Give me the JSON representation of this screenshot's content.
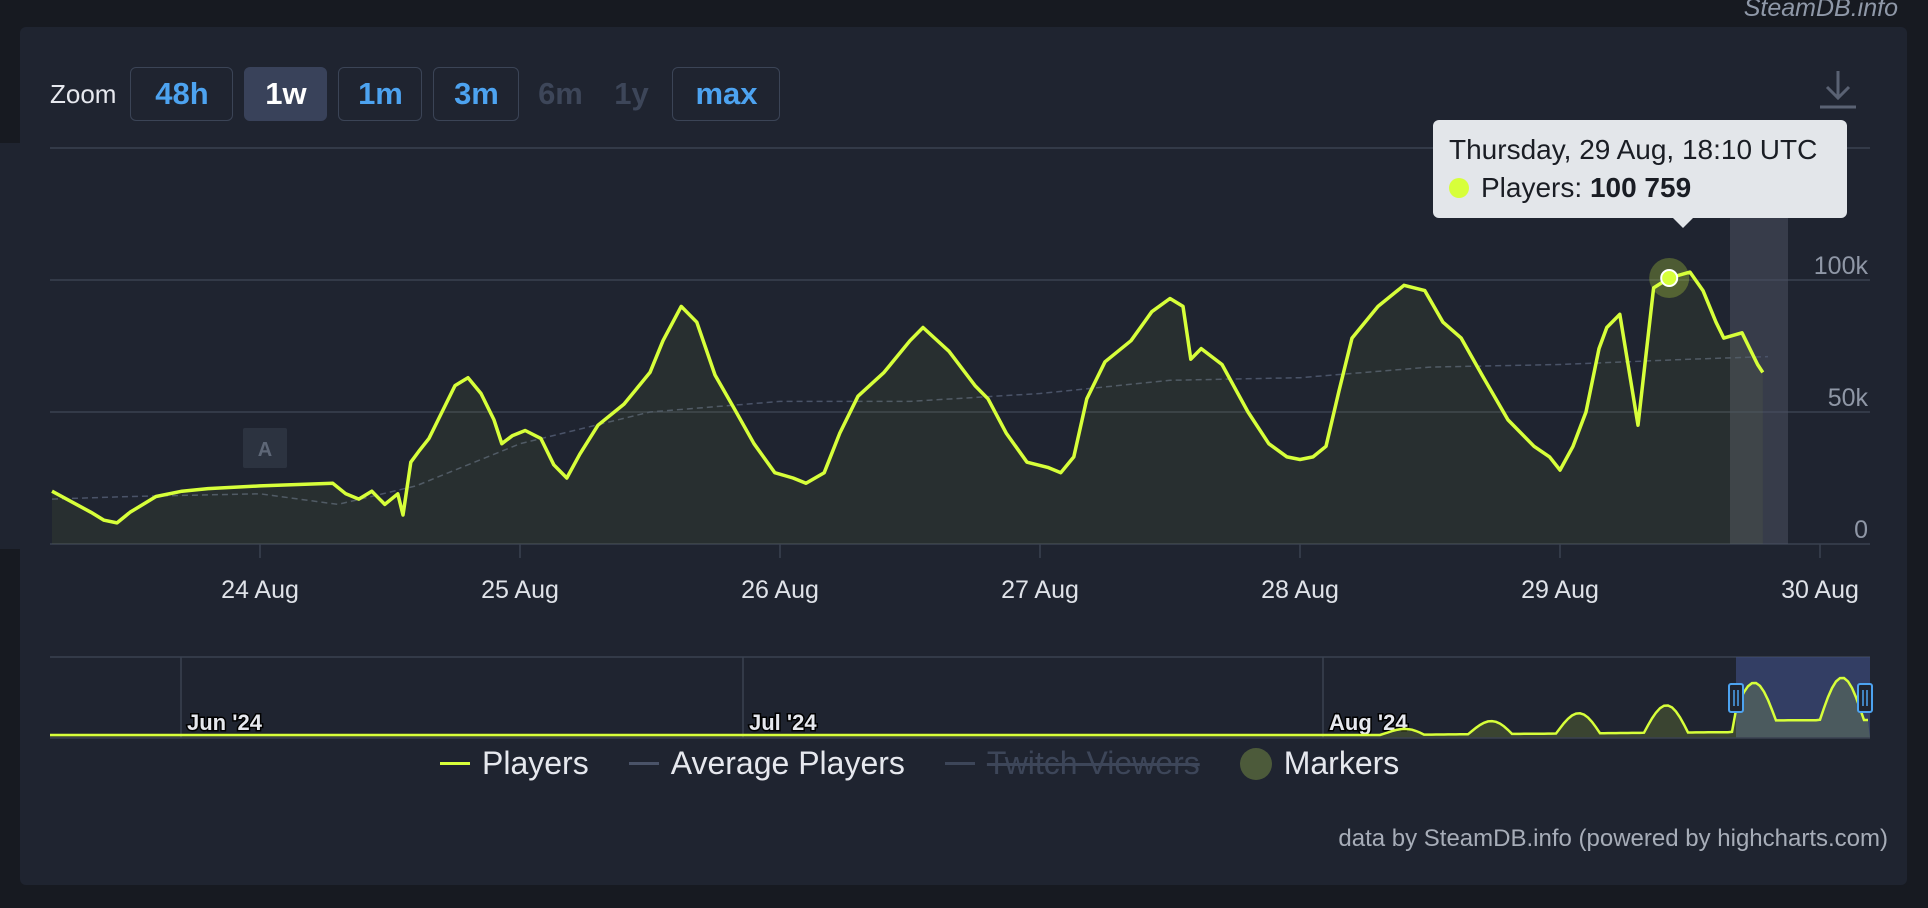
{
  "watermark": "SteamDB.info",
  "zoom": {
    "label": "Zoom",
    "buttons": [
      {
        "label": "48h",
        "state": "normal"
      },
      {
        "label": "1w",
        "state": "active"
      },
      {
        "label": "1m",
        "state": "normal"
      },
      {
        "label": "3m",
        "state": "normal"
      },
      {
        "label": "6m",
        "state": "disabled"
      },
      {
        "label": "1y",
        "state": "disabled"
      },
      {
        "label": "max",
        "state": "normal"
      }
    ]
  },
  "download_icon": "download-icon",
  "tooltip": {
    "title": "Thursday, 29 Aug, 18:10 UTC",
    "series_label": "Players: ",
    "value": "100 759"
  },
  "marker": {
    "label": "A"
  },
  "colors": {
    "players": "#d7ff3a",
    "average": "#4a5368",
    "twitch": "#3d4659",
    "marker": "#4c5a3a",
    "panel": "#1f2430"
  },
  "chart_data": {
    "type": "line",
    "x_ticks": [
      "24 Aug",
      "25 Aug",
      "26 Aug",
      "27 Aug",
      "28 Aug",
      "29 Aug",
      "30 Aug"
    ],
    "y_ticks": [
      "0",
      "50k",
      "100k"
    ],
    "ylim": [
      0,
      150000
    ],
    "series": [
      {
        "name": "Players",
        "points": [
          [
            -0.8,
            20000
          ],
          [
            -0.65,
            12000
          ],
          [
            -0.6,
            9000
          ],
          [
            -0.55,
            8000
          ],
          [
            -0.5,
            12000
          ],
          [
            -0.4,
            18000
          ],
          [
            -0.3,
            20000
          ],
          [
            -0.2,
            21000
          ],
          [
            0.0,
            22000
          ],
          [
            0.28,
            23000
          ],
          [
            0.33,
            19000
          ],
          [
            0.38,
            17000
          ],
          [
            0.43,
            20000
          ],
          [
            0.48,
            15000
          ],
          [
            0.53,
            19000
          ],
          [
            0.55,
            11000
          ],
          [
            0.58,
            31000
          ],
          [
            0.61,
            35000
          ],
          [
            0.65,
            40000
          ],
          [
            0.7,
            50000
          ],
          [
            0.75,
            60000
          ],
          [
            0.8,
            63000
          ],
          [
            0.85,
            57000
          ],
          [
            0.9,
            47000
          ],
          [
            0.93,
            38000
          ],
          [
            0.97,
            41000
          ],
          [
            1.02,
            43000
          ],
          [
            1.08,
            40000
          ],
          [
            1.13,
            30000
          ],
          [
            1.18,
            25000
          ],
          [
            1.23,
            34000
          ],
          [
            1.3,
            45000
          ],
          [
            1.4,
            53000
          ],
          [
            1.5,
            65000
          ],
          [
            1.55,
            77000
          ],
          [
            1.62,
            90000
          ],
          [
            1.68,
            84000
          ],
          [
            1.75,
            64000
          ],
          [
            1.82,
            52000
          ],
          [
            1.9,
            38000
          ],
          [
            1.98,
            27000
          ],
          [
            2.05,
            25000
          ],
          [
            2.1,
            23000
          ],
          [
            2.17,
            27000
          ],
          [
            2.23,
            42000
          ],
          [
            2.3,
            56000
          ],
          [
            2.4,
            65000
          ],
          [
            2.5,
            77000
          ],
          [
            2.55,
            82000
          ],
          [
            2.65,
            73000
          ],
          [
            2.75,
            60000
          ],
          [
            2.8,
            55000
          ],
          [
            2.87,
            42000
          ],
          [
            2.95,
            31000
          ],
          [
            3.03,
            29000
          ],
          [
            3.08,
            27000
          ],
          [
            3.13,
            33000
          ],
          [
            3.18,
            55000
          ],
          [
            3.25,
            69000
          ],
          [
            3.35,
            77000
          ],
          [
            3.43,
            88000
          ],
          [
            3.5,
            93000
          ],
          [
            3.55,
            90000
          ],
          [
            3.58,
            70000
          ],
          [
            3.62,
            74000
          ],
          [
            3.7,
            68000
          ],
          [
            3.8,
            50000
          ],
          [
            3.88,
            38000
          ],
          [
            3.95,
            33000
          ],
          [
            4.0,
            32000
          ],
          [
            4.05,
            33000
          ],
          [
            4.1,
            37000
          ],
          [
            4.15,
            58000
          ],
          [
            4.2,
            78000
          ],
          [
            4.3,
            90000
          ],
          [
            4.4,
            98000
          ],
          [
            4.48,
            96000
          ],
          [
            4.55,
            84000
          ],
          [
            4.62,
            78000
          ],
          [
            4.7,
            64000
          ],
          [
            4.8,
            47000
          ],
          [
            4.9,
            37000
          ],
          [
            4.96,
            33000
          ],
          [
            5.0,
            28000
          ],
          [
            5.05,
            37000
          ],
          [
            5.1,
            50000
          ],
          [
            5.15,
            74000
          ],
          [
            5.18,
            82000
          ],
          [
            5.23,
            87000
          ],
          [
            5.3,
            45000
          ],
          [
            5.36,
            97000
          ],
          [
            5.42,
            100759
          ],
          [
            5.5,
            103000
          ],
          [
            5.55,
            96000
          ],
          [
            5.6,
            84000
          ],
          [
            5.63,
            78000
          ],
          [
            5.7,
            80000
          ],
          [
            5.76,
            68000
          ],
          [
            5.78,
            65000
          ]
        ]
      },
      {
        "name": "Average Players",
        "points": [
          [
            -0.8,
            17000
          ],
          [
            -0.5,
            18000
          ],
          [
            0.0,
            19000
          ],
          [
            0.3,
            15000
          ],
          [
            0.6,
            22000
          ],
          [
            1.0,
            38000
          ],
          [
            1.5,
            50000
          ],
          [
            2.0,
            54000
          ],
          [
            2.5,
            54000
          ],
          [
            3.0,
            57000
          ],
          [
            3.5,
            62000
          ],
          [
            4.0,
            63000
          ],
          [
            4.5,
            67000
          ],
          [
            5.0,
            68000
          ],
          [
            5.5,
            70000
          ],
          [
            5.8,
            71000
          ]
        ]
      }
    ],
    "navigator": {
      "labels": [
        "Jun '24",
        "Jul '24",
        "Aug '24"
      ]
    },
    "legend": [
      {
        "name": "Players",
        "enabled": true
      },
      {
        "name": "Average Players",
        "enabled": true
      },
      {
        "name": "Twitch Viewers",
        "enabled": false
      },
      {
        "name": "Markers",
        "enabled": true
      }
    ],
    "legend_position": "bottom"
  },
  "credits": "data by SteamDB.info (powered by highcharts.com)"
}
